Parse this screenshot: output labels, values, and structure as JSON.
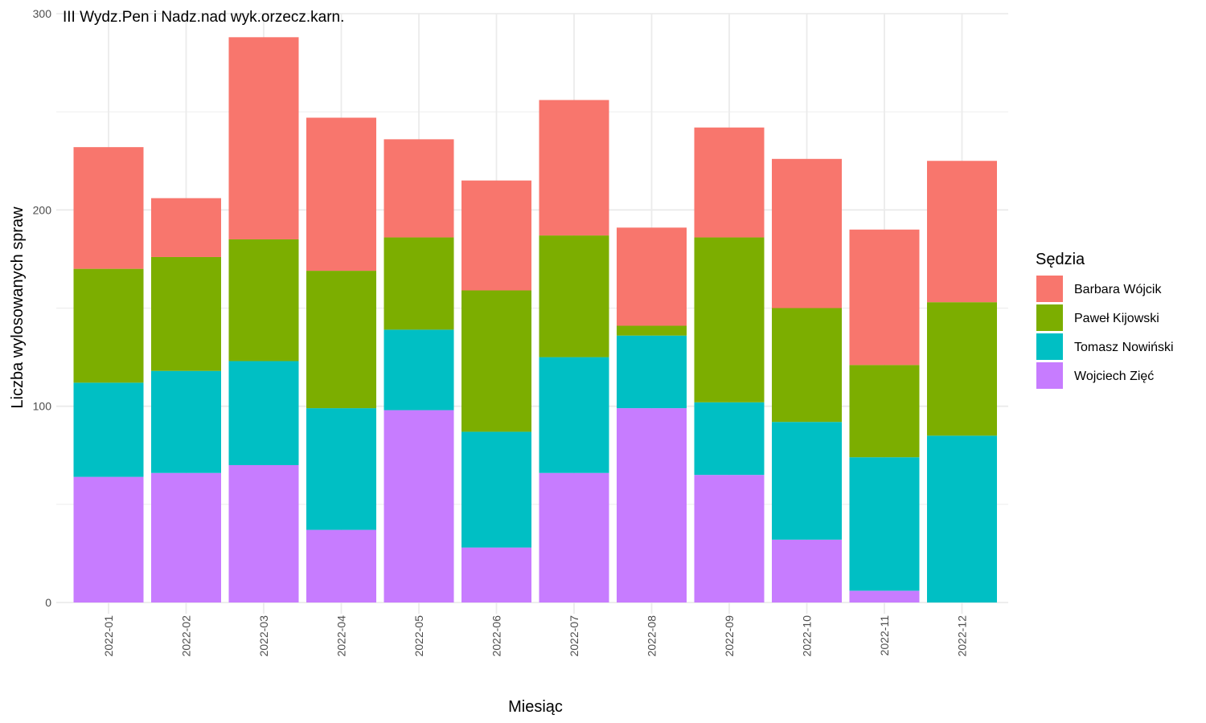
{
  "chart_data": {
    "type": "bar",
    "stacked": true,
    "title": "III Wydz.Pen i Nadz.nad wyk.orzecz.karn.",
    "xlabel": "Miesiąc",
    "ylabel": "Liczba wylosowanych spraw",
    "ylim": [
      0,
      300
    ],
    "yticks": [
      0,
      100,
      200,
      300
    ],
    "grid": true,
    "legend_title": "Sędzia",
    "legend_position": "right",
    "categories": [
      "2022-01",
      "2022-02",
      "2022-03",
      "2022-04",
      "2022-05",
      "2022-06",
      "2022-07",
      "2022-08",
      "2022-09",
      "2022-10",
      "2022-11",
      "2022-12"
    ],
    "series": [
      {
        "name": "Wojciech Zięć",
        "color": "#C77CFF",
        "values": [
          64,
          66,
          70,
          37,
          98,
          28,
          66,
          99,
          65,
          32,
          6,
          0
        ]
      },
      {
        "name": "Tomasz Nowiński",
        "color": "#00BFC4",
        "values": [
          48,
          52,
          53,
          62,
          41,
          59,
          59,
          37,
          37,
          60,
          68,
          85
        ]
      },
      {
        "name": "Paweł Kijowski",
        "color": "#7CAE00",
        "values": [
          58,
          58,
          62,
          70,
          47,
          72,
          62,
          5,
          84,
          58,
          47,
          68
        ]
      },
      {
        "name": "Barbara Wójcik",
        "color": "#F8766D",
        "values": [
          62,
          30,
          103,
          78,
          50,
          56,
          69,
          50,
          56,
          76,
          69,
          72
        ]
      }
    ],
    "legend_order": [
      "Barbara Wójcik",
      "Paweł Kijowski",
      "Tomasz Nowiński",
      "Wojciech Zięć"
    ]
  }
}
